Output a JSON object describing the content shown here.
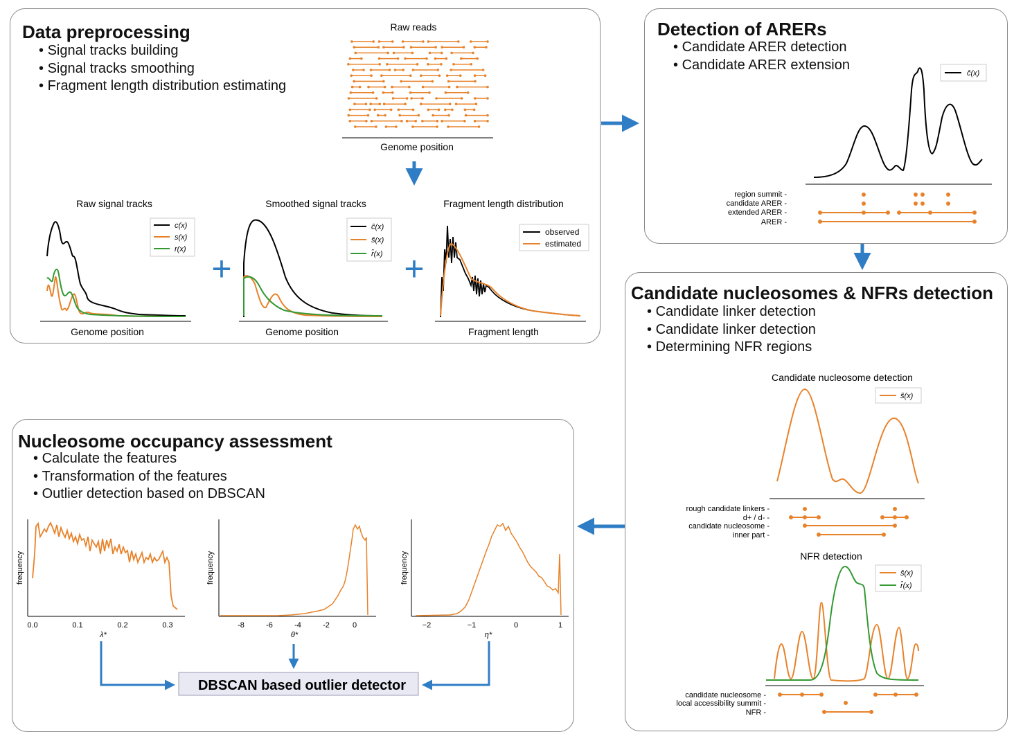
{
  "colors": {
    "orange": "#e8822a",
    "black": "#000000",
    "green": "#339933",
    "arrow": "#2f7dc4"
  },
  "preprocessing": {
    "title": "Data preprocessing",
    "bullets": [
      "Signal tracks building",
      "Signal tracks smoothing",
      "Fragment length distribution estimating"
    ],
    "raw_reads_title": "Raw reads",
    "raw_reads_xlabel": "Genome position",
    "raw_title": "Raw signal tracks",
    "raw_xlabel": "Genome position",
    "raw_legend": [
      "c(x)",
      "s(x)",
      "r(x)"
    ],
    "smooth_title": "Smoothed signal tracks",
    "smooth_xlabel": "Genome position",
    "smooth_legend": [
      "ĉ(x)",
      "ŝ(x)",
      "r̂(x)"
    ],
    "frag_title": "Fragment length distribution",
    "frag_xlabel": "Fragment length",
    "frag_legend": [
      "observed",
      "estimated"
    ],
    "plus": "+"
  },
  "arer": {
    "title": "Detection of ARERs",
    "bullets": [
      "Candidate ARER detection",
      "Candidate ARER extension"
    ],
    "legend": "ĉ(x)",
    "track_labels": [
      "region summit -",
      "candidate ARER -",
      "extended ARER -",
      "ARER -"
    ]
  },
  "nucleosome": {
    "title": "Candidate nucleosomes & NFRs detection",
    "bullets": [
      "Candidate linker detection",
      "Candidate linker detection",
      "Determining NFR regions"
    ],
    "cand_title": "Candidate nucleosome detection",
    "cand_legend": "ŝ(x)",
    "cand_track_labels": [
      "rough candidate linkers -",
      "d+ / d- -",
      "candidate nucleosome -",
      "inner part -"
    ],
    "nfr_title": "NFR detection",
    "nfr_legend": [
      "ŝ(x)",
      "r̂(x)"
    ],
    "nfr_track_labels": [
      "candidate nucleosome -",
      "local accessibility summit -",
      "NFR -"
    ]
  },
  "occupancy": {
    "title": "Nucleosome occupancy assessment",
    "bullets": [
      "Calculate the features",
      "Transformation of the features",
      "Outlier detection based on DBSCAN"
    ],
    "ylabel": "frequency",
    "hist1": {
      "xlabel": "λ*",
      "ticks": [
        "0.0",
        "0.1",
        "0.2",
        "0.3"
      ]
    },
    "hist2": {
      "xlabel": "θ*",
      "ticks": [
        "-8",
        "-6",
        "-4",
        "-2",
        "0"
      ]
    },
    "hist3": {
      "xlabel": "η*",
      "ticks": [
        "−2",
        "−1",
        "0",
        "1"
      ]
    },
    "dbscan_label": "DBSCAN based outlier detector"
  }
}
